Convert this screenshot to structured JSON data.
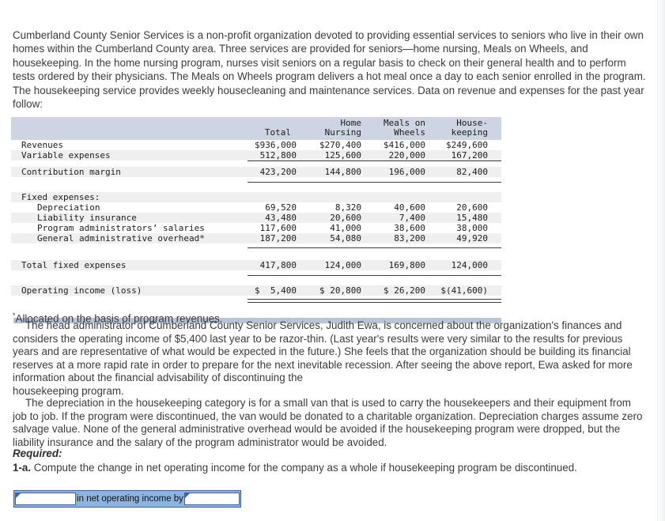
{
  "theme": {
    "table_header_bg": "#cdd5e2",
    "row_stripe": "#efefef",
    "table_end_bar": "#b8c5d7",
    "rule_color": "#3e3e3e",
    "widget_fill": "#8db3e0",
    "widget_border": "#3e649f"
  },
  "intro": "Cumberland County Senior Services is a non-profit organization devoted to providing essential services to seniors who live in their own homes within the Cumberland County area. Three services are provided for seniors—home nursing, Meals on Wheels, and housekeeping. In the home nursing program, nurses visit seniors on a regular basis to check on their general health and to perform tests ordered by their physicians. The Meals on Wheels program delivers a hot meal once a day to each senior enrolled in the program. The housekeeping service provides weekly housecleaning and maintenance services. Data on revenue and expenses for the past year follow:",
  "table": {
    "columns": [
      {
        "line1": " ",
        "line2": "Total"
      },
      {
        "line1": "Home",
        "line2": "Nursing"
      },
      {
        "line1": "Meals on",
        "line2": "Wheels"
      },
      {
        "line1": "House-",
        "line2": "keeping"
      }
    ],
    "rows": [
      {
        "label": "Revenues",
        "shade": false,
        "values": [
          "$936,000",
          "$270,400",
          "$416,000",
          "$249,600"
        ]
      },
      {
        "label": "Variable expenses",
        "shade": true,
        "values": [
          "512,800",
          "125,600",
          "220,000",
          "167,200"
        ]
      },
      {
        "spacer": true,
        "rule": "single"
      },
      {
        "label": "Contribution margin",
        "shade": true,
        "values": [
          "423,200",
          "144,800",
          "196,000",
          "82,400"
        ]
      },
      {
        "spacer": true,
        "rule": "single"
      },
      {
        "label": "Fixed expenses:",
        "shade": true,
        "values": [
          "",
          "",
          "",
          ""
        ]
      },
      {
        "label": "Depreciation",
        "indent": true,
        "shade": false,
        "values": [
          "69,520",
          "8,320",
          "40,600",
          "20,600"
        ]
      },
      {
        "label": "Liability insurance",
        "indent": true,
        "shade": true,
        "values": [
          "43,480",
          "20,600",
          "7,400",
          "15,480"
        ]
      },
      {
        "label": "Program administrators’ salaries",
        "indent": true,
        "shade": false,
        "values": [
          "117,600",
          "41,000",
          "38,600",
          "38,000"
        ]
      },
      {
        "label": "General administrative overhead*",
        "indent": true,
        "shade": true,
        "values": [
          "187,200",
          "54,080",
          "83,200",
          "49,920"
        ]
      },
      {
        "spacer": true,
        "rule": "single"
      },
      {
        "label": "Total fixed expenses",
        "shade": true,
        "values": [
          "417,800",
          "124,000",
          "169,800",
          "124,000"
        ]
      },
      {
        "spacer": true,
        "rule": "single"
      },
      {
        "label": "Operating income (loss)",
        "shade": true,
        "values": [
          "$  5,400",
          "$ 20,800",
          "$ 26,200",
          "$(41,600)"
        ]
      },
      {
        "spacer": true,
        "rule": "double"
      }
    ]
  },
  "footnote": {
    "marker": "*",
    "text": "Allocated on the basis of program revenues."
  },
  "narrative": {
    "para2": "The head administrator of Cumberland County Senior Services, Judith Ewa, is concerned about the organization's finances and considers the operating income of $5,400 last year to be razor-thin. (Last year's results were very similar to the results for previous years and are representative of what would be expected in the future.) She feels that the organization should be building its financial reserves at a more rapid rate in order to prepare for the next inevitable recession. After seeing the above report, Ewa asked for more information about the financial advisability of discontinuing the",
    "para2_tail": "housekeeping program.",
    "para3": "The depreciation in the housekeeping category is for a small van that is used to carry the housekeepers and their equipment from job to job. If the program were discontinued, the van would be donated to a charitable organization. Depreciation charges assume zero salvage value. None of the general administrative overhead would be avoided if the housekeeping program were dropped, but the liability insurance and the salary of the program administrator would be avoided."
  },
  "required_label": "Required:",
  "question": {
    "number": "1-a.",
    "text": " Compute the change in net operating income for the company as a whole if housekeeping program be discontinued."
  },
  "answer_widget": {
    "label": "in net operating income by",
    "left_value": "",
    "right_value": ""
  }
}
